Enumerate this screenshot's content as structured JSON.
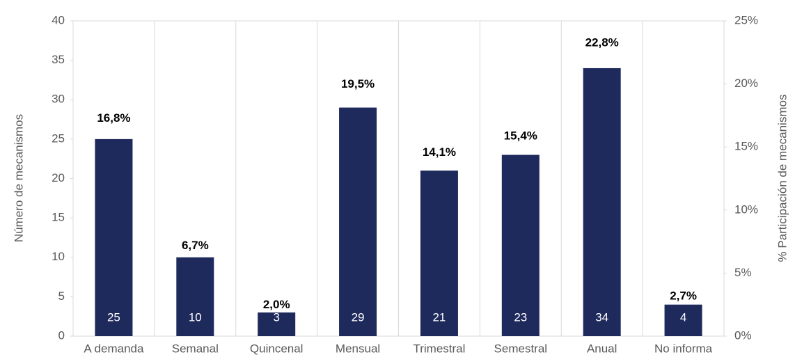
{
  "chart_data": {
    "type": "bar",
    "categories": [
      "A demanda",
      "Semanal",
      "Quincenal",
      "Mensual",
      "Trimestral",
      "Semestral",
      "Anual",
      "No informa"
    ],
    "series": [
      {
        "color": "#1f2a5c",
        "values": [
          25,
          10,
          3,
          29,
          21,
          23,
          34,
          4
        ]
      },
      {
        "axis": "y2",
        "values": [
          16.8,
          6.7,
          2.0,
          19.5,
          14.1,
          15.4,
          22.8,
          2.7
        ],
        "value_labels": [
          "16,8%",
          "6,7%",
          "2,0%",
          "19,5%",
          "14,1%",
          "15,4%",
          "22,8%",
          "2,7%"
        ]
      }
    ],
    "y_label": "Número de mecanismos",
    "y2_label": "% Participación de mecanismos",
    "ylim": [
      0,
      40
    ],
    "yticks": [
      0,
      5,
      10,
      15,
      20,
      25,
      30,
      35,
      40
    ],
    "y2lim": [
      0,
      25
    ],
    "y2ticks": [
      {
        "value": 0,
        "label": "0%"
      },
      {
        "value": 5,
        "label": "5%"
      },
      {
        "value": 10,
        "label": "10%"
      },
      {
        "value": 15,
        "label": "15%"
      },
      {
        "value": 20,
        "label": "20%"
      },
      {
        "value": 25,
        "label": "25%"
      }
    ]
  }
}
